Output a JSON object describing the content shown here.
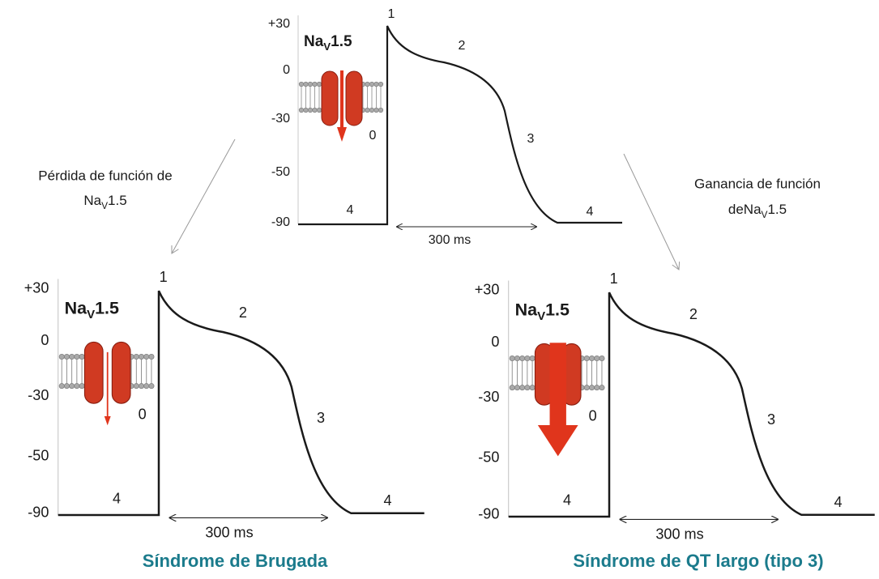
{
  "panels": [
    {
      "y_labels": [
        "+30",
        "0",
        "-30",
        "-50",
        "-90"
      ],
      "channel": {
        "base": "Na",
        "sub": "V",
        "suffix": "1.5"
      },
      "phases": [
        "1",
        "2",
        "3",
        "0",
        "4",
        "4"
      ],
      "duration": "300 ms"
    },
    {
      "y_labels": [
        "+30",
        "0",
        "-30",
        "-50",
        "-90"
      ],
      "channel": {
        "base": "Na",
        "sub": "V",
        "suffix": "1.5"
      },
      "phases": [
        "1",
        "2",
        "3",
        "0",
        "4",
        "4"
      ],
      "duration": "300 ms",
      "caption": "Síndrome de Brugada"
    },
    {
      "y_labels": [
        "+30",
        "0",
        "-30",
        "-50",
        "-90"
      ],
      "channel": {
        "base": "Na",
        "sub": "V",
        "suffix": "1.5"
      },
      "phases": [
        "1",
        "2",
        "3",
        "0",
        "4",
        "4"
      ],
      "duration": "300 ms",
      "caption": "Síndrome de QT largo (tipo 3)"
    }
  ],
  "transitions": [
    {
      "line1": "Pérdida de función de",
      "line2": {
        "base": "Na",
        "sub": "V",
        "suffix": "1.5"
      }
    },
    {
      "line1": "Ganancia de función",
      "line2": {
        "prefix": "de",
        "base": "Na",
        "sub": "V",
        "suffix": "1.5"
      }
    }
  ]
}
